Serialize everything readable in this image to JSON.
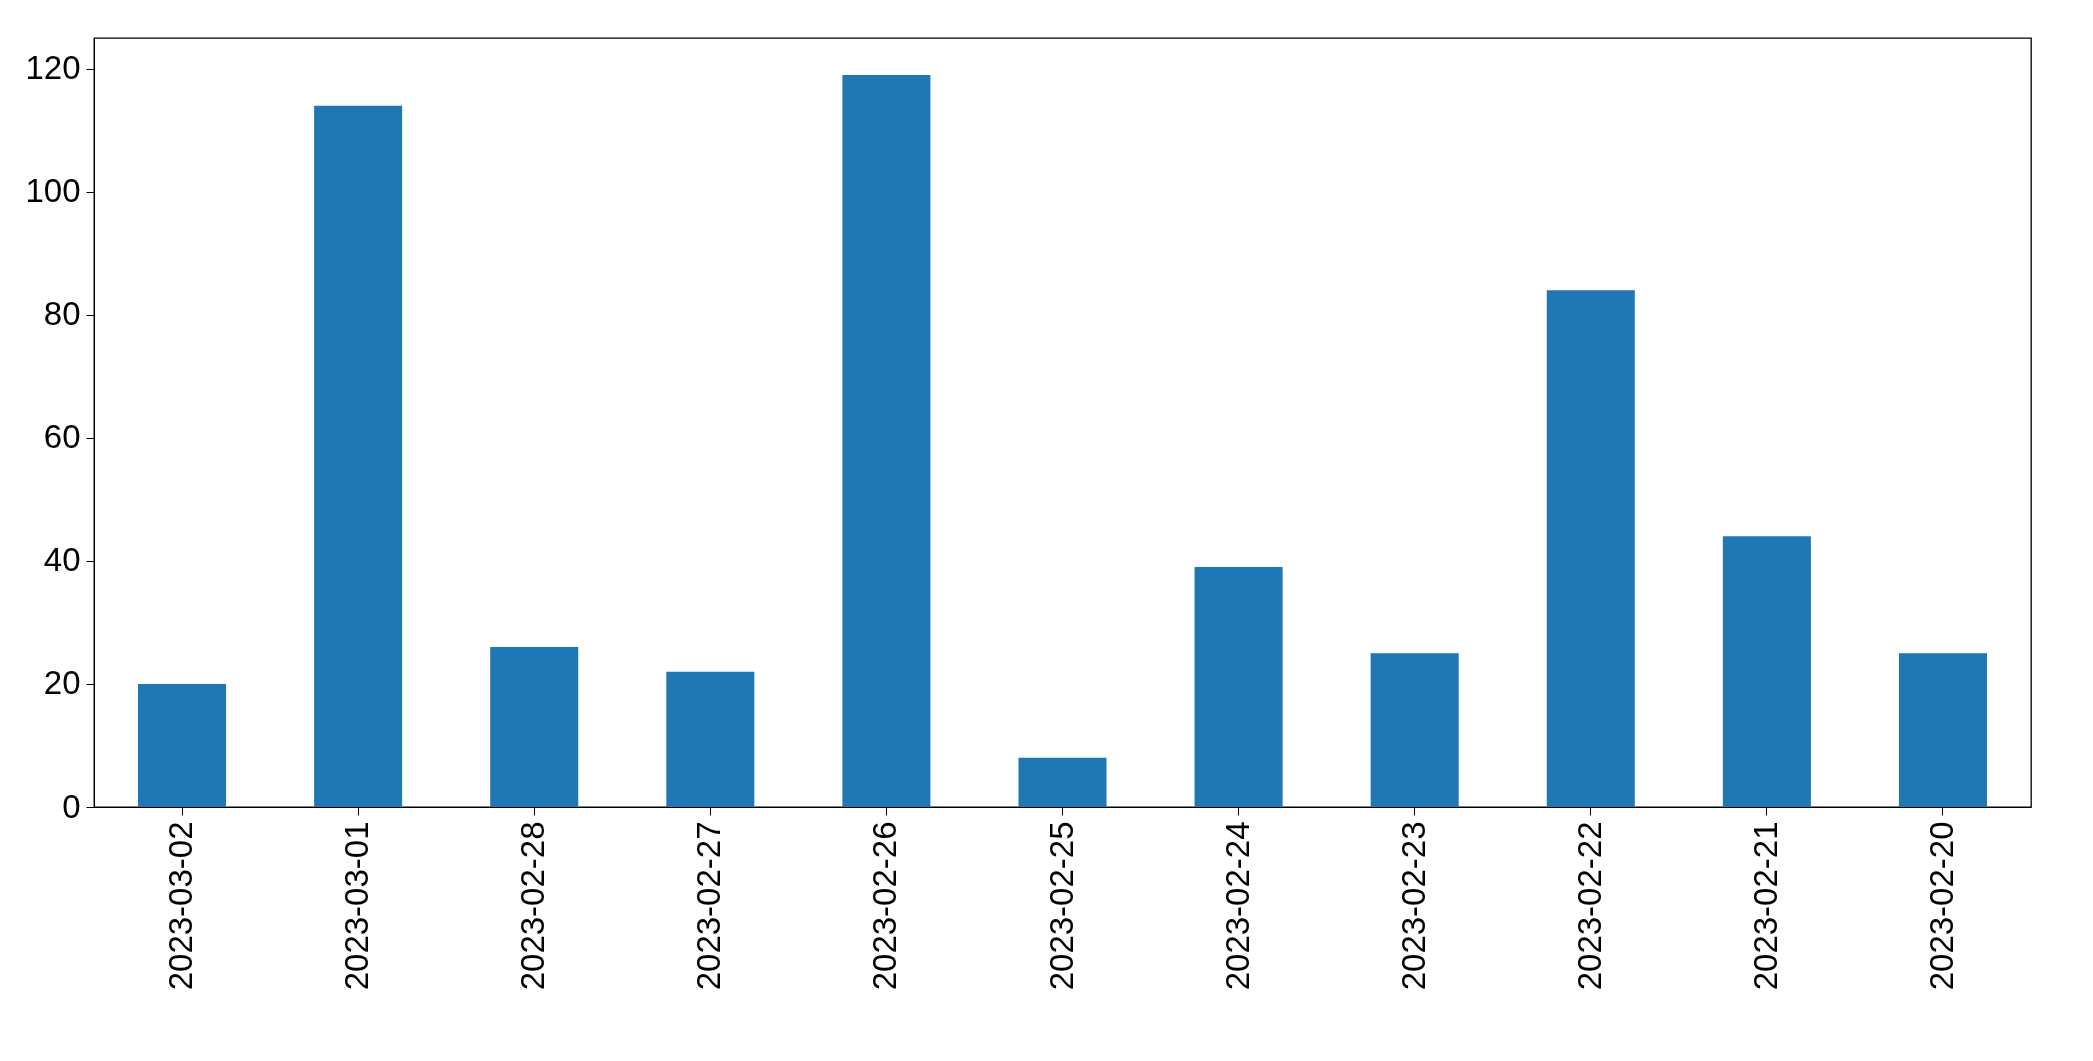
{
  "chart_data": {
    "type": "bar",
    "categories": [
      "2023-03-02",
      "2023-03-01",
      "2023-02-28",
      "2023-02-27",
      "2023-02-26",
      "2023-02-25",
      "2023-02-24",
      "2023-02-23",
      "2023-02-22",
      "2023-02-21",
      "2023-02-20"
    ],
    "values": [
      20,
      114,
      26,
      22,
      119,
      8,
      39,
      25,
      84,
      44,
      25
    ],
    "color": "#1f77b4",
    "ylim": [
      0,
      125
    ],
    "yticks": [
      0,
      20,
      40,
      60,
      80,
      100,
      120
    ],
    "grid": false
  }
}
